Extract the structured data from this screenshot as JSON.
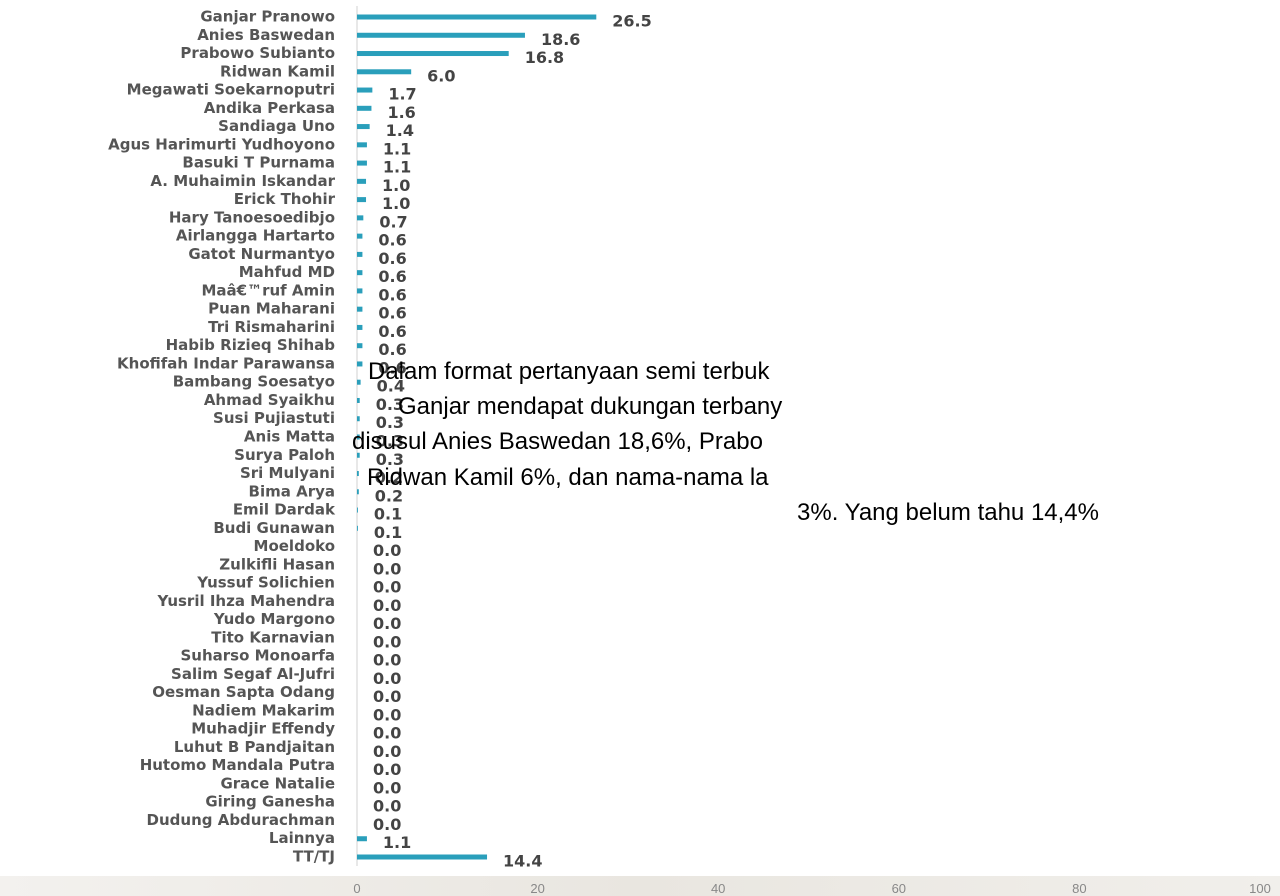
{
  "chart_data": {
    "type": "bar",
    "orientation": "horizontal",
    "categories": [
      "Ganjar Pranowo",
      "Anies Baswedan",
      "Prabowo Subianto",
      "Ridwan Kamil",
      "Megawati Soekarnoputri",
      "Andika Perkasa",
      "Sandiaga Uno",
      "Agus Harimurti Yudhoyono",
      "Basuki T Purnama",
      "A. Muhaimin Iskandar",
      "Erick Thohir",
      "Hary Tanoesoedibjo",
      "Airlangga Hartarto",
      "Gatot Nurmantyo",
      "Mahfud MD",
      "Maâ€™ruf Amin",
      "Puan Maharani",
      "Tri Rismaharini",
      "Habib Rizieq Shihab",
      "Khofifah Indar Parawansa",
      "Bambang Soesatyo",
      "Ahmad Syaikhu",
      "Susi Pujiastuti",
      "Anis Matta",
      "Surya Paloh",
      "Sri Mulyani",
      "Bima Arya",
      "Emil Dardak",
      "Budi Gunawan",
      "Moeldoko",
      "Zulkifli Hasan",
      "Yussuf Solichien",
      "Yusril Ihza Mahendra",
      "Yudo Margono",
      "Tito Karnavian",
      "Suharso Monoarfa",
      "Salim Segaf Al-Jufri",
      "Oesman Sapta Odang",
      "Nadiem Makarim",
      "Muhadjir Effendy",
      "Luhut B Pandjaitan",
      "Hutomo Mandala Putra",
      "Grace Natalie",
      "Giring Ganesha",
      "Dudung Abdurachman",
      "Lainnya",
      "TT/TJ"
    ],
    "values": [
      26.5,
      18.6,
      16.8,
      6,
      1.7,
      1.6,
      1.4,
      1.1,
      1.1,
      1,
      1,
      0.7,
      0.6,
      0.6,
      0.6,
      0.6,
      0.6,
      0.6,
      0.6,
      0.6,
      0.4,
      0.3,
      0.3,
      0.3,
      0.3,
      0.2,
      0.2,
      0.1,
      0.1,
      0,
      0,
      0,
      0,
      0,
      0,
      0,
      0,
      0,
      0,
      0,
      0,
      0,
      0,
      0,
      0,
      1.1,
      14.4
    ],
    "value_labels": [
      "26.5",
      "18.6",
      "16.8",
      "6.0",
      "1.7",
      "1.6",
      "1.4",
      "1.1",
      "1.1",
      "1.0",
      "1.0",
      "0.7",
      "0.6",
      "0.6",
      "0.6",
      "0.6",
      "0.6",
      "0.6",
      "0.6",
      "0.6",
      "0.4",
      "0.3",
      "0.3",
      "0.3",
      "0.3",
      "0.2",
      "0.2",
      "0.1",
      "0.1",
      "0.0",
      "0.0",
      "0.0",
      "0.0",
      "0.0",
      "0.0",
      "0.0",
      "0.0",
      "0.0",
      "0.0",
      "0.0",
      "0.0",
      "0.0",
      "0.0",
      "0.0",
      "0.0",
      "1.1",
      "14.4"
    ],
    "color": "#2a9fbb",
    "xlim": [
      0,
      100
    ],
    "xticks": [
      0,
      20,
      40,
      60,
      80,
      100
    ],
    "annotation": [
      "Dalam format pertanyaan semi terbuk",
      "Ganjar mendapat dukungan terbany",
      "disusul Anies Baswedan 18,6%, Prabo",
      "Ridwan Kamil 6%, dan nama-nama la",
      "3%. Yang belum tahu 14,4%"
    ]
  }
}
